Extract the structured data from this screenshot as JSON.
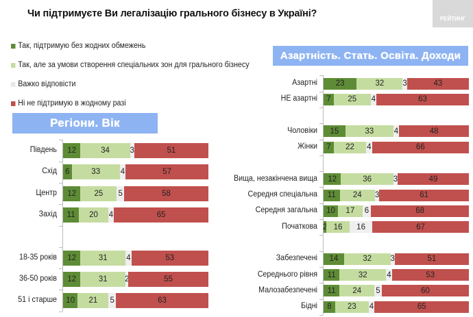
{
  "title": "Чи підтримуєте Ви легалізацію грального бізнесу в Україні?",
  "logo": "РЕЙТИНГ",
  "colors": {
    "yes_unlimited": "#5e8c36",
    "yes_zones": "#c5dca0",
    "hard": "#efefef",
    "no": "#c0504d"
  },
  "chart_data": [
    {
      "type": "bar",
      "stacked": true,
      "orientation": "horizontal",
      "title": "Регіони. Вік",
      "legend": [
        "Так, підтримую без жодних обмежень",
        "Так, але за умови створення спеціальних зон для грального бізнесу",
        "Важко відповісти",
        "Ні не підтримую в жодному разі"
      ],
      "groups": [
        [
          {
            "label": "Південь",
            "values": [
              12,
              34,
              3,
              51
            ]
          },
          {
            "label": "Схід",
            "values": [
              6,
              33,
              4,
              57
            ]
          },
          {
            "label": "Центр",
            "values": [
              12,
              25,
              5,
              58
            ]
          },
          {
            "label": "Захід",
            "values": [
              11,
              20,
              4,
              65
            ]
          }
        ],
        [
          {
            "label": "18-35 років",
            "values": [
              12,
              31,
              4,
              53
            ]
          },
          {
            "label": "36-50 років",
            "values": [
              12,
              31,
              2,
              55
            ]
          },
          {
            "label": "51 і старше",
            "values": [
              10,
              21,
              5,
              63
            ]
          }
        ]
      ]
    },
    {
      "type": "bar",
      "stacked": true,
      "orientation": "horizontal",
      "title": "Азартність. Стать. Освіта. Доходи",
      "groups": [
        [
          {
            "label": "Азартні",
            "values": [
              23,
              32,
              3,
              43
            ]
          },
          {
            "label": "НЕ азартні",
            "values": [
              7,
              25,
              4,
              63
            ]
          }
        ],
        [
          {
            "label": "Чоловіки",
            "values": [
              15,
              33,
              4,
              48
            ]
          },
          {
            "label": "Жінки",
            "values": [
              7,
              22,
              4,
              66
            ]
          }
        ],
        [
          {
            "label": "Вища, незакінчена вища",
            "values": [
              12,
              36,
              3,
              49
            ]
          },
          {
            "label": "Середня спеціальна",
            "values": [
              11,
              24,
              3,
              61
            ]
          },
          {
            "label": "Середня загальна",
            "values": [
              10,
              17,
              6,
              68
            ]
          },
          {
            "label": "Початкова",
            "values": [
              2,
              16,
              16,
              67
            ]
          }
        ],
        [
          {
            "label": "Забезпечені",
            "values": [
              14,
              32,
              3,
              51
            ]
          },
          {
            "label": "Середнього рівня",
            "values": [
              11,
              32,
              4,
              53
            ]
          },
          {
            "label": "Малозабезпечені",
            "values": [
              11,
              24,
              5,
              60
            ]
          },
          {
            "label": "Бідні",
            "values": [
              8,
              23,
              4,
              65
            ]
          }
        ]
      ]
    }
  ]
}
